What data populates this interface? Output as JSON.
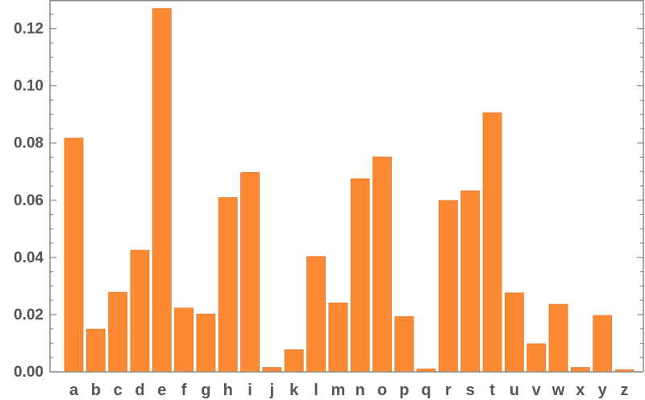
{
  "chart_data": {
    "type": "bar",
    "title": "",
    "xlabel": "",
    "ylabel": "",
    "categories": [
      "a",
      "b",
      "c",
      "d",
      "e",
      "f",
      "g",
      "h",
      "i",
      "j",
      "k",
      "l",
      "m",
      "n",
      "o",
      "p",
      "q",
      "r",
      "s",
      "t",
      "u",
      "v",
      "w",
      "x",
      "y",
      "z"
    ],
    "values": [
      0.0817,
      0.0149,
      0.0278,
      0.0425,
      0.127,
      0.0223,
      0.0202,
      0.0609,
      0.0697,
      0.0015,
      0.0077,
      0.0403,
      0.0241,
      0.0675,
      0.0751,
      0.0193,
      0.001,
      0.0599,
      0.0633,
      0.0906,
      0.0276,
      0.0098,
      0.0236,
      0.0015,
      0.0197,
      0.0007
    ],
    "ylim": [
      0,
      0.13
    ],
    "yticks": [
      0.0,
      0.02,
      0.04,
      0.06,
      0.08,
      0.1,
      0.12
    ],
    "ytick_labels": [
      "0.00",
      "0.02",
      "0.04",
      "0.06",
      "0.08",
      "0.10",
      "0.12"
    ],
    "grid": false,
    "colors": {
      "bar_fill": "#fd8a33",
      "bar_stroke": "#e07625",
      "axis": "#8a8a8a",
      "text": "#555555"
    }
  }
}
